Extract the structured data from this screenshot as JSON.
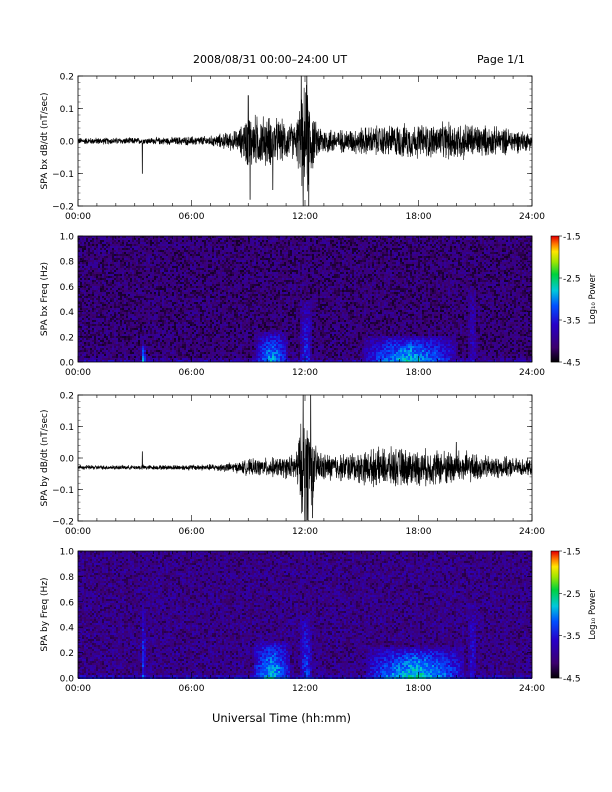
{
  "header": {
    "date_range": "2008/08/31   00:00–24:00 UT",
    "page": "Page 1/1"
  },
  "footer": {
    "xlabel": "Universal Time (hh:mm)"
  },
  "colors": {
    "trace": "#000000",
    "background": "#ffffff"
  },
  "chart_data": [
    {
      "type": "line",
      "ylabel": "SPA bx dB/dt (nT/sec)",
      "ylim": [
        -0.2,
        0.2
      ],
      "yticks": [
        "0.2",
        "0.1",
        "0.0",
        "−0.1",
        "−0.2"
      ],
      "xticks": [
        "00:00",
        "06:00",
        "12:00",
        "18:00",
        "24:00"
      ],
      "xlim_hours": [
        0,
        24
      ],
      "baseline": 0.0,
      "envelope": {
        "x_hours": [
          0,
          2,
          3,
          3.5,
          4,
          7,
          8.5,
          9,
          9.5,
          10,
          10.5,
          11,
          11.5,
          11.8,
          12,
          12.2,
          12.5,
          13,
          14,
          15,
          16,
          17,
          18,
          19,
          20,
          21,
          22,
          23,
          24
        ],
        "amplitude": [
          0.012,
          0.012,
          0.012,
          0.012,
          0.012,
          0.018,
          0.04,
          0.1,
          0.09,
          0.09,
          0.08,
          0.07,
          0.06,
          0.15,
          0.2,
          0.2,
          0.07,
          0.05,
          0.04,
          0.05,
          0.055,
          0.06,
          0.06,
          0.06,
          0.07,
          0.06,
          0.05,
          0.045,
          0.03
        ]
      },
      "spikes": [
        {
          "x": 3.4,
          "y": -0.1
        },
        {
          "x": 9.0,
          "y": 0.14
        },
        {
          "x": 9.1,
          "y": -0.18
        },
        {
          "x": 10.3,
          "y": -0.15
        },
        {
          "x": 11.8,
          "y": 0.2
        },
        {
          "x": 11.9,
          "y": -0.2
        },
        {
          "x": 12.1,
          "y": 0.2
        },
        {
          "x": 12.2,
          "y": -0.2
        }
      ]
    },
    {
      "type": "heatmap",
      "ylabel": "SPA bx Freq (Hz)",
      "ylim": [
        0.0,
        1.0
      ],
      "yticks": [
        "1.0",
        "0.8",
        "0.6",
        "0.4",
        "0.2",
        "0.0"
      ],
      "xticks": [
        "00:00",
        "06:00",
        "12:00",
        "18:00",
        "24:00"
      ],
      "xlim_hours": [
        0,
        24
      ],
      "colorbar": {
        "label": "Log₁₀ Power",
        "range": [
          -4.5,
          -1.5
        ],
        "ticks": [
          "-1.5",
          "-2.5",
          "-3.5",
          "-4.5"
        ]
      },
      "background_level": -4.1,
      "features": [
        {
          "x": 3.4,
          "fmax": 0.15,
          "level": -2.7,
          "width": 0.12
        },
        {
          "x": 10.2,
          "fmax": 0.25,
          "level": -2.8,
          "width": 0.9
        },
        {
          "x": 12.0,
          "fmax": 0.5,
          "level": -3.3,
          "width": 0.3
        },
        {
          "x": 17.5,
          "fmax": 0.22,
          "level": -2.7,
          "width": 2.5
        },
        {
          "x": 20.8,
          "fmax": 0.6,
          "level": -3.6,
          "width": 0.2
        }
      ]
    },
    {
      "type": "line",
      "ylabel": "SPA by dB/dt (nT/sec)",
      "ylim": [
        -0.2,
        0.2
      ],
      "yticks": [
        "0.2",
        "0.1",
        "0.0",
        "−0.1",
        "−0.2"
      ],
      "xticks": [
        "00:00",
        "06:00",
        "12:00",
        "18:00",
        "24:00"
      ],
      "xlim_hours": [
        0,
        24
      ],
      "baseline": -0.03,
      "envelope": {
        "x_hours": [
          0,
          2,
          3,
          3.5,
          4,
          7,
          8.5,
          9,
          9.5,
          10,
          10.5,
          11,
          11.5,
          11.8,
          12,
          12.2,
          12.5,
          13,
          14,
          15,
          16,
          17,
          18,
          19,
          20,
          21,
          22,
          23,
          24
        ],
        "amplitude": [
          0.008,
          0.008,
          0.008,
          0.01,
          0.008,
          0.012,
          0.02,
          0.03,
          0.03,
          0.035,
          0.035,
          0.04,
          0.05,
          0.16,
          0.2,
          0.2,
          0.08,
          0.05,
          0.05,
          0.06,
          0.07,
          0.07,
          0.065,
          0.065,
          0.065,
          0.05,
          0.04,
          0.035,
          0.03
        ]
      },
      "spikes": [
        {
          "x": 3.4,
          "y": 0.02
        },
        {
          "x": 11.9,
          "y": 0.2
        },
        {
          "x": 12.0,
          "y": -0.2
        },
        {
          "x": 12.3,
          "y": 0.2
        },
        {
          "x": 12.4,
          "y": -0.19
        },
        {
          "x": 20.0,
          "y": 0.05
        }
      ]
    },
    {
      "type": "heatmap",
      "ylabel": "SPA by Freq (Hz)",
      "ylim": [
        0.0,
        1.0
      ],
      "yticks": [
        "1.0",
        "0.8",
        "0.6",
        "0.4",
        "0.2",
        "0.0"
      ],
      "xticks": [
        "00:00",
        "06:00",
        "12:00",
        "18:00",
        "24:00"
      ],
      "xlim_hours": [
        0,
        24
      ],
      "colorbar": {
        "label": "Log₁₀ Power",
        "range": [
          -4.5,
          -1.5
        ],
        "ticks": [
          "-1.5",
          "-2.5",
          "-3.5",
          "-4.5"
        ]
      },
      "background_level": -4.0,
      "features": [
        {
          "x": 3.4,
          "fmax": 0.55,
          "level": -3.2,
          "width": 0.12
        },
        {
          "x": 10.2,
          "fmax": 0.3,
          "level": -2.7,
          "width": 1.0
        },
        {
          "x": 12.0,
          "fmax": 0.5,
          "level": -3.2,
          "width": 0.3
        },
        {
          "x": 17.8,
          "fmax": 0.25,
          "level": -2.6,
          "width": 2.6
        },
        {
          "x": 20.8,
          "fmax": 0.6,
          "level": -3.5,
          "width": 0.2
        }
      ]
    }
  ]
}
